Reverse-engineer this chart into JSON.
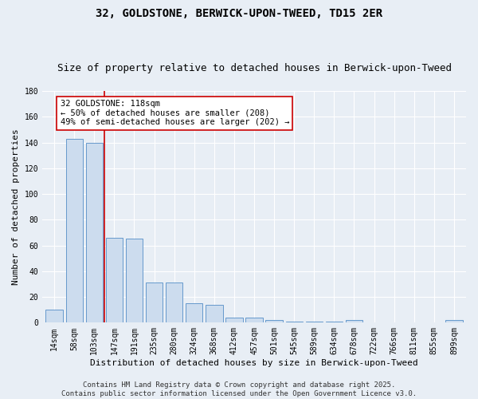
{
  "title": "32, GOLDSTONE, BERWICK-UPON-TWEED, TD15 2ER",
  "subtitle": "Size of property relative to detached houses in Berwick-upon-Tweed",
  "xlabel": "Distribution of detached houses by size in Berwick-upon-Tweed",
  "ylabel": "Number of detached properties",
  "bar_labels": [
    "14sqm",
    "58sqm",
    "103sqm",
    "147sqm",
    "191sqm",
    "235sqm",
    "280sqm",
    "324sqm",
    "368sqm",
    "412sqm",
    "457sqm",
    "501sqm",
    "545sqm",
    "589sqm",
    "634sqm",
    "678sqm",
    "722sqm",
    "766sqm",
    "811sqm",
    "855sqm",
    "899sqm"
  ],
  "bar_values": [
    10,
    143,
    140,
    66,
    65,
    31,
    31,
    15,
    14,
    4,
    4,
    2,
    1,
    1,
    1,
    2,
    0,
    0,
    0,
    0,
    2
  ],
  "bar_color": "#ccdcee",
  "bar_edge_color": "#6699cc",
  "bg_color": "#e8eef5",
  "grid_color": "#ffffff",
  "vline_x": 2.5,
  "vline_color": "#cc0000",
  "annotation_text": "32 GOLDSTONE: 118sqm\n← 50% of detached houses are smaller (208)\n49% of semi-detached houses are larger (202) →",
  "annotation_box_color": "#ffffff",
  "annotation_box_edge": "#cc0000",
  "ylim": [
    0,
    180
  ],
  "yticks": [
    0,
    20,
    40,
    60,
    80,
    100,
    120,
    140,
    160,
    180
  ],
  "footer": "Contains HM Land Registry data © Crown copyright and database right 2025.\nContains public sector information licensed under the Open Government Licence v3.0.",
  "title_fontsize": 10,
  "subtitle_fontsize": 9,
  "xlabel_fontsize": 8,
  "ylabel_fontsize": 8,
  "tick_fontsize": 7,
  "footer_fontsize": 6.5,
  "ann_fontsize": 7.5
}
